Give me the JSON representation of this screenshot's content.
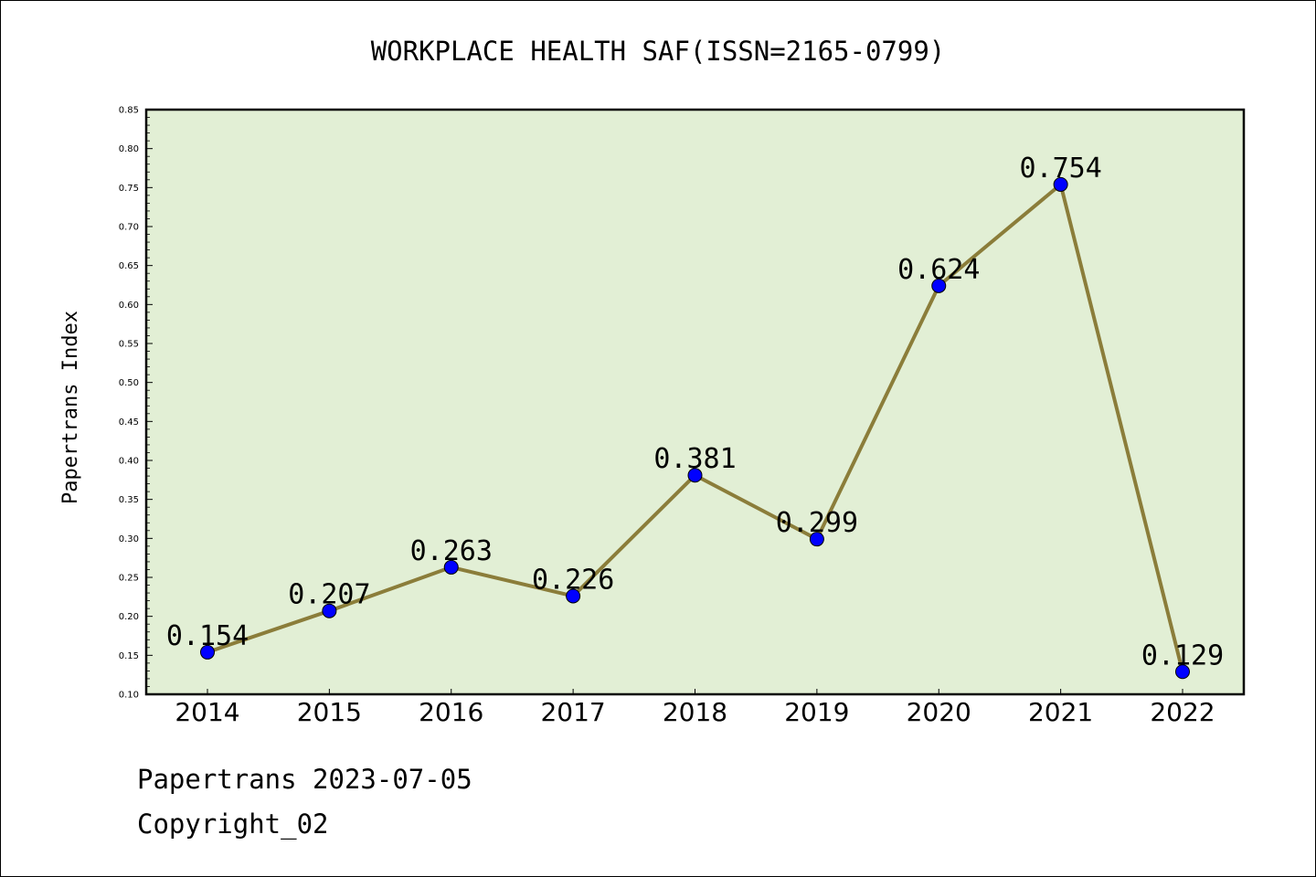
{
  "chart_data": {
    "type": "line",
    "title": "WORKPLACE HEALTH SAF(ISSN=2165-0799)",
    "xlabel": "",
    "ylabel": "Papertrans Index",
    "categories": [
      "2014",
      "2015",
      "2016",
      "2017",
      "2018",
      "2019",
      "2020",
      "2021",
      "2022"
    ],
    "values": [
      0.154,
      0.207,
      0.263,
      0.226,
      0.381,
      0.299,
      0.624,
      0.754,
      0.129
    ],
    "data_labels": [
      "0.154",
      "0.207",
      "0.263",
      "0.226",
      "0.381",
      "0.299",
      "0.624",
      "0.754",
      "0.129"
    ],
    "ylim": [
      0.1,
      0.85
    ],
    "yticks": [
      "0.10",
      "0.15",
      "0.20",
      "0.25",
      "0.30",
      "0.35",
      "0.40",
      "0.45",
      "0.50",
      "0.55",
      "0.60",
      "0.65",
      "0.70",
      "0.75",
      "0.80",
      "0.85"
    ],
    "grid": false,
    "legend": "none",
    "colors": {
      "plot_background": "#e2efd5",
      "line": "#8b7d3a",
      "marker": "#0000ff",
      "axis": "#000000"
    }
  },
  "footer": {
    "date_text": "Papertrans 2023-07-05",
    "copyright_text": "Copyright_02"
  }
}
